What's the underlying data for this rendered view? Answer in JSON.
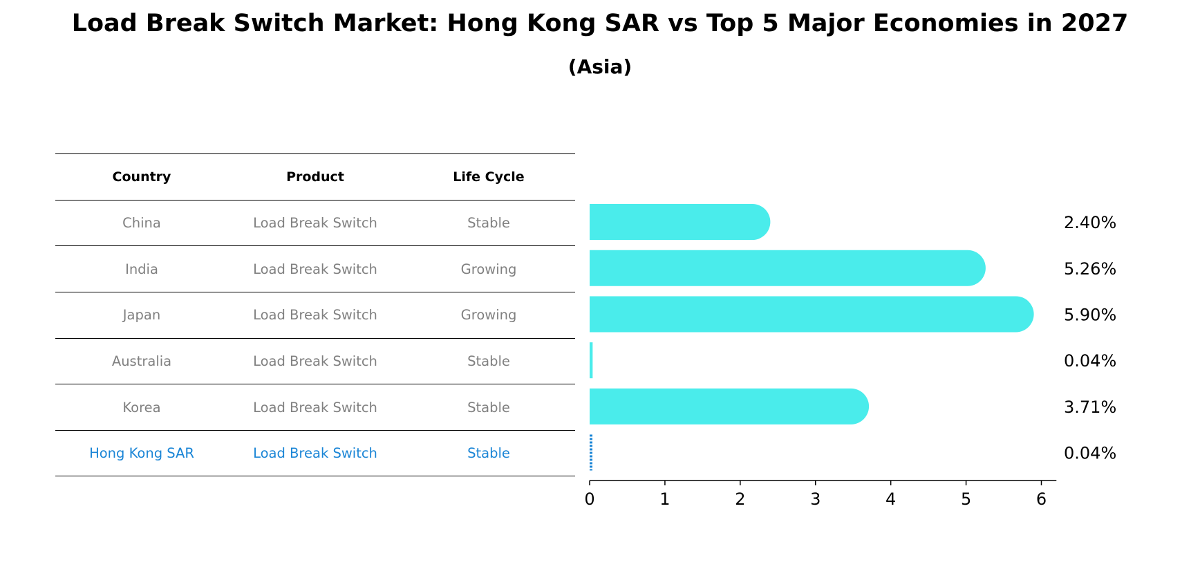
{
  "title": "Load Break Switch Market: Hong Kong SAR vs Top 5 Major Economies in 2027",
  "subtitle": "(Asia)",
  "table": {
    "headers": [
      "Country",
      "Product",
      "Life Cycle"
    ],
    "rows": [
      [
        "China",
        "Load Break Switch",
        "Stable"
      ],
      [
        "India",
        "Load Break Switch",
        "Growing"
      ],
      [
        "Japan",
        "Load Break Switch",
        "Growing"
      ],
      [
        "Australia",
        "Load Break Switch",
        "Stable"
      ],
      [
        "Korea",
        "Load Break Switch",
        "Stable"
      ],
      [
        "Hong Kong SAR",
        "Load Break Switch",
        "Stable"
      ]
    ],
    "highlight_color": "#1a85d6",
    "text_color": "#808080"
  },
  "chart_data": {
    "type": "bar",
    "orientation": "horizontal",
    "categories": [
      "China",
      "India",
      "Japan",
      "Australia",
      "Korea",
      "Hong Kong SAR"
    ],
    "values": [
      2.4,
      5.26,
      5.9,
      0.04,
      3.71,
      0.04
    ],
    "labels": [
      "2.40%",
      "5.26%",
      "5.90%",
      "0.04%",
      "3.71%",
      "0.04%"
    ],
    "xlim": [
      0,
      6.2
    ],
    "xticks": [
      0,
      1,
      2,
      3,
      4,
      5,
      6
    ],
    "bar_color": "#4aeceb",
    "highlight_color": "#1a85d6",
    "highlight_index": 5,
    "grid": false
  }
}
